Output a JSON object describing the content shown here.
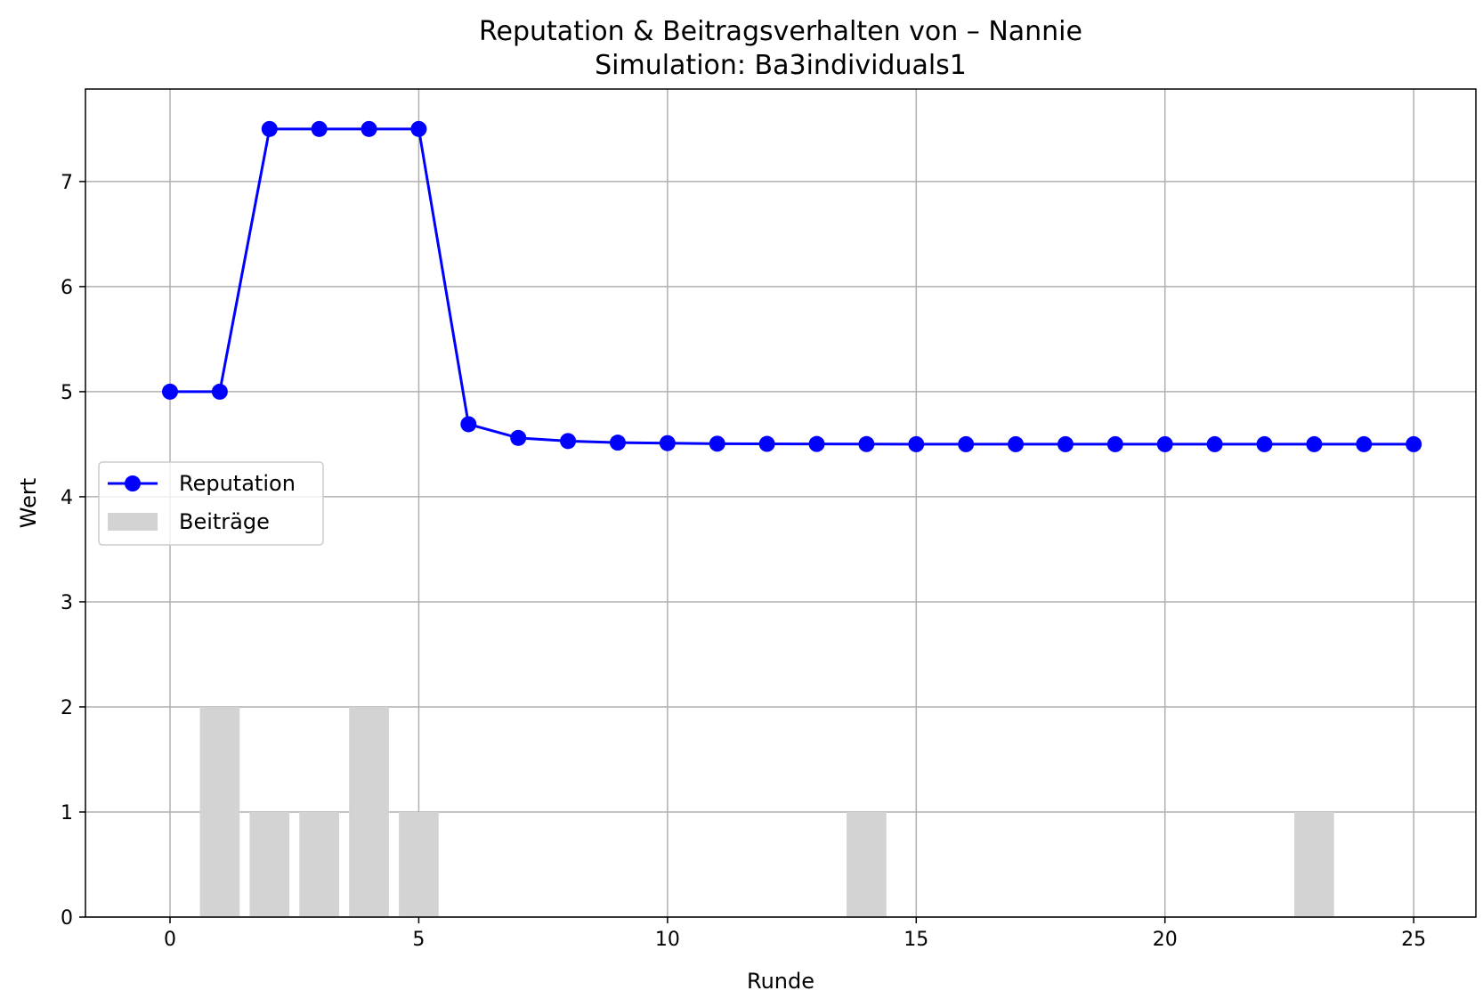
{
  "chart_data": {
    "type": "line",
    "title": "Reputation & Beitragsverhalten von – Nannie",
    "subtitle": "Simulation: Ba3individuals1",
    "xlabel": "Runde",
    "ylabel": "Wert",
    "xlim": [
      -1.7,
      26.25
    ],
    "ylim": [
      0,
      7.88
    ],
    "grid": true,
    "legend_position": "center-left",
    "x_ticks": [
      "0",
      "5",
      "10",
      "15",
      "20",
      "25"
    ],
    "y_ticks": [
      "0",
      "1",
      "2",
      "3",
      "4",
      "5",
      "6",
      "7"
    ],
    "series": [
      {
        "name": "Reputation",
        "type": "line",
        "color": "#0000ff",
        "marker": "circle",
        "x": [
          0,
          1,
          2,
          3,
          4,
          5,
          6,
          7,
          8,
          9,
          10,
          11,
          12,
          13,
          14,
          15,
          16,
          17,
          18,
          19,
          20,
          21,
          22,
          23,
          24,
          25
        ],
        "values": [
          5.0,
          5.0,
          7.5,
          7.5,
          7.5,
          7.5,
          4.69,
          4.56,
          4.53,
          4.515,
          4.51,
          4.505,
          4.503,
          4.502,
          4.501,
          4.5,
          4.5,
          4.5,
          4.5,
          4.5,
          4.5,
          4.5,
          4.5,
          4.5,
          4.5,
          4.5
        ]
      },
      {
        "name": "Beiträge",
        "type": "bar",
        "color": "#d3d3d3",
        "x": [
          1,
          2,
          3,
          4,
          5,
          14,
          23
        ],
        "values": [
          2,
          1,
          1,
          2,
          1,
          1,
          1
        ]
      }
    ]
  }
}
